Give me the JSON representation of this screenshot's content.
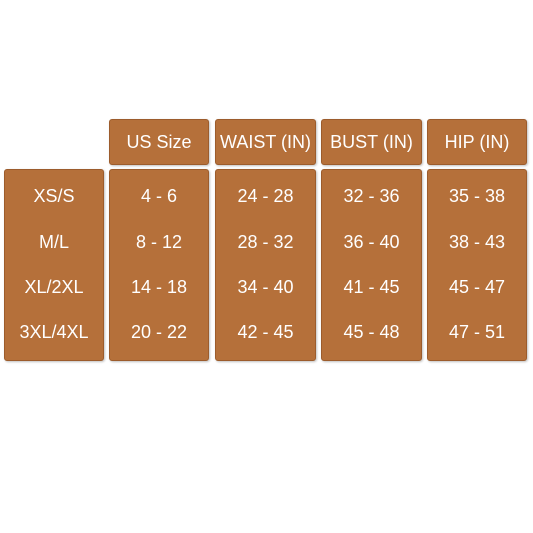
{
  "headers": {
    "us_size": "US Size",
    "waist": "WAIST (IN)",
    "bust": "BUST (IN)",
    "hip": "HIP (IN)"
  },
  "columns": {
    "size": [
      "XS/S",
      "M/L",
      "XL/2XL",
      "3XL/4XL"
    ],
    "us_size": [
      "4 - 6",
      "8 - 12",
      "14 - 18",
      "20 - 22"
    ],
    "waist": [
      "24 - 28",
      "28 - 32",
      "34 - 40",
      "42 - 45"
    ],
    "bust": [
      "32 - 36",
      "36 - 40",
      "41 - 45",
      "45 - 48"
    ],
    "hip": [
      "35 - 38",
      "38 - 43",
      "45 - 47",
      "47 - 51"
    ]
  },
  "colors": {
    "cell_background": "#b5703a",
    "text": "#ffffff"
  }
}
